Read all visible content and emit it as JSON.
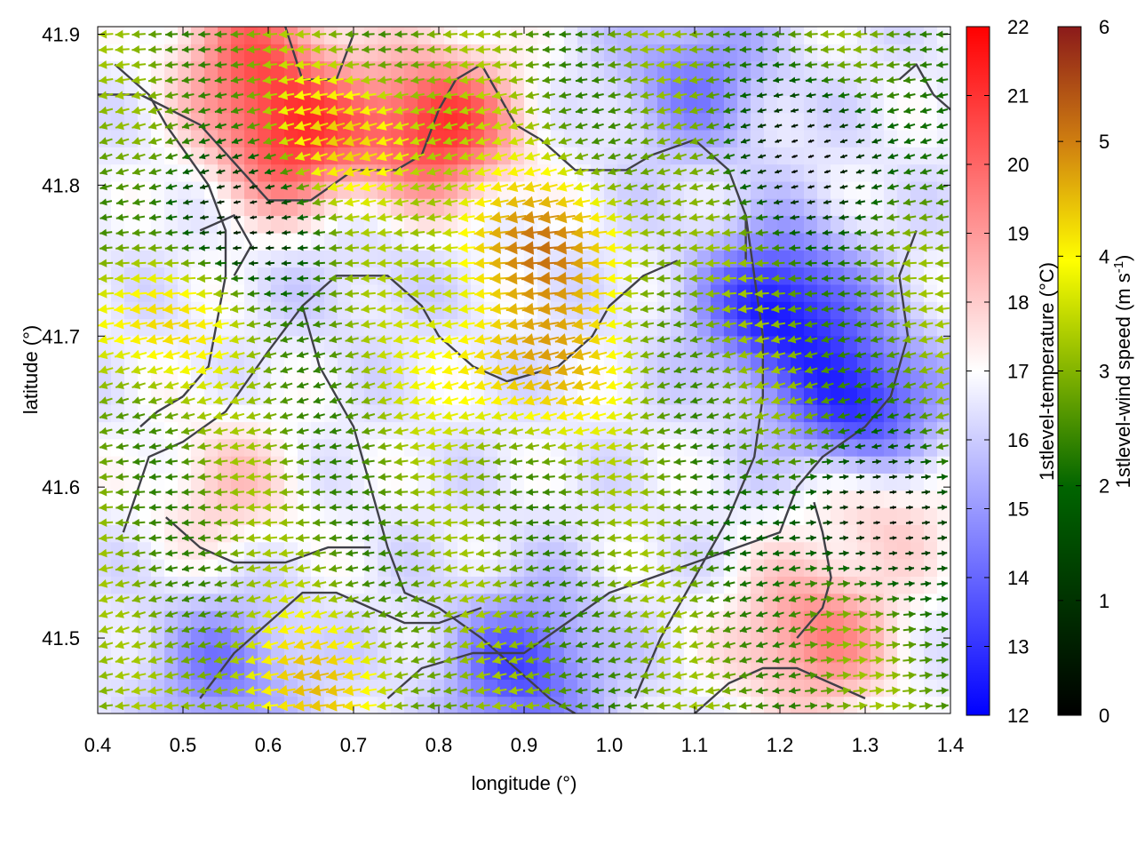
{
  "chart_data": {
    "type": "heatmap",
    "title": "",
    "xlabel": "longitude (°)",
    "ylabel": "latitude (°)",
    "xlim": [
      0.4,
      1.4
    ],
    "ylim": [
      41.45,
      41.905
    ],
    "xticks": [
      "0.4",
      "0.5",
      "0.6",
      "0.7",
      "0.8",
      "0.9",
      "1.0",
      "1.1",
      "1.2",
      "1.3",
      "1.4"
    ],
    "yticks": [
      "41.5",
      "41.6",
      "41.7",
      "41.8",
      "41.9"
    ],
    "xtick_values": [
      0.4,
      0.5,
      0.6,
      0.7,
      0.8,
      0.9,
      1.0,
      1.1,
      1.2,
      1.3,
      1.4
    ],
    "ytick_values": [
      41.5,
      41.6,
      41.7,
      41.8,
      41.9
    ],
    "grid": false,
    "temperature_colorbar": {
      "label": "1stlevel-temperature (°C)",
      "range": [
        12,
        22
      ],
      "ticks": [
        "12",
        "13",
        "14",
        "15",
        "16",
        "17",
        "18",
        "19",
        "20",
        "21",
        "22"
      ],
      "colors": [
        "#0000ff",
        "#ffffff",
        "#ff0000"
      ]
    },
    "wind_colorbar": {
      "label_main": "1stlevel-wind speed (m s",
      "label_sup": "-1",
      "label_end": ")",
      "range": [
        0,
        6
      ],
      "ticks": [
        "0",
        "1",
        "2",
        "3",
        "4",
        "5",
        "6"
      ],
      "colors": [
        "#000000",
        "#006400",
        "#ffff00",
        "#d08010",
        "#8b1a1a"
      ]
    },
    "temperature_features": [
      {
        "lon": 0.63,
        "lat": 41.83,
        "temp": 20.5
      },
      {
        "lon": 0.8,
        "lat": 41.84,
        "temp": 21.0
      },
      {
        "lon": 0.58,
        "lat": 41.89,
        "temp": 19.5
      },
      {
        "lon": 1.24,
        "lat": 41.5,
        "temp": 19.5
      },
      {
        "lon": 1.32,
        "lat": 41.6,
        "temp": 18.5
      },
      {
        "lon": 0.55,
        "lat": 41.6,
        "temp": 18.0
      },
      {
        "lon": 1.2,
        "lat": 41.72,
        "temp": 12.5
      },
      {
        "lon": 1.3,
        "lat": 41.65,
        "temp": 12.5
      },
      {
        "lon": 1.1,
        "lat": 41.87,
        "temp": 14.5
      },
      {
        "lon": 0.9,
        "lat": 41.48,
        "temp": 13.5
      },
      {
        "lon": 0.55,
        "lat": 41.48,
        "temp": 14.5
      },
      {
        "lon": 0.7,
        "lat": 41.75,
        "temp": 16.0
      }
    ],
    "wind_features": [
      {
        "lon": 0.92,
        "lat": 41.76,
        "speed": 4.3
      },
      {
        "lon": 0.9,
        "lat": 41.68,
        "speed": 4.0
      },
      {
        "lon": 0.45,
        "lat": 41.71,
        "speed": 3.5
      },
      {
        "lon": 0.65,
        "lat": 41.47,
        "speed": 3.5
      },
      {
        "lon": 0.7,
        "lat": 41.83,
        "speed": 3.5
      },
      {
        "lon": 1.25,
        "lat": 41.82,
        "speed": 0.3
      },
      {
        "lon": 1.3,
        "lat": 41.58,
        "speed": 0.4
      },
      {
        "lon": 0.56,
        "lat": 41.78,
        "speed": 0.5
      }
    ],
    "boundaries": [
      [
        [
          0.62,
          41.905
        ],
        [
          0.64,
          41.87
        ],
        [
          0.68,
          41.87
        ],
        [
          0.7,
          41.9
        ]
      ],
      [
        [
          0.4,
          41.86
        ],
        [
          0.45,
          41.86
        ],
        [
          0.52,
          41.84
        ],
        [
          0.6,
          41.79
        ],
        [
          0.65,
          41.79
        ],
        [
          0.7,
          41.81
        ],
        [
          0.75,
          41.81
        ],
        [
          0.78,
          41.82
        ],
        [
          0.8,
          41.85
        ],
        [
          0.82,
          41.87
        ],
        [
          0.85,
          41.88
        ],
        [
          0.87,
          41.86
        ],
        [
          0.89,
          41.84
        ],
        [
          0.92,
          41.83
        ],
        [
          0.96,
          41.81
        ],
        [
          1.02,
          41.81
        ],
        [
          1.05,
          41.82
        ],
        [
          1.1,
          41.83
        ],
        [
          1.14,
          41.81
        ],
        [
          1.16,
          41.78
        ],
        [
          1.16,
          41.75
        ]
      ],
      [
        [
          0.42,
          41.88
        ],
        [
          0.46,
          41.86
        ],
        [
          0.48,
          41.84
        ],
        [
          0.53,
          41.8
        ],
        [
          0.55,
          41.77
        ],
        [
          0.55,
          41.74
        ],
        [
          0.54,
          41.71
        ],
        [
          0.53,
          41.68
        ],
        [
          0.5,
          41.66
        ]
      ],
      [
        [
          0.5,
          41.66
        ],
        [
          0.47,
          41.65
        ],
        [
          0.45,
          41.64
        ]
      ],
      [
        [
          0.43,
          41.57
        ],
        [
          0.46,
          41.62
        ],
        [
          0.5,
          41.63
        ],
        [
          0.55,
          41.65
        ],
        [
          0.6,
          41.69
        ],
        [
          0.64,
          41.72
        ],
        [
          0.68,
          41.74
        ],
        [
          0.74,
          41.74
        ],
        [
          0.78,
          41.72
        ],
        [
          0.8,
          41.7
        ],
        [
          0.84,
          41.68
        ],
        [
          0.88,
          41.67
        ],
        [
          0.94,
          41.68
        ],
        [
          0.98,
          41.7
        ],
        [
          1.0,
          41.72
        ],
        [
          1.04,
          41.74
        ],
        [
          1.08,
          41.75
        ]
      ],
      [
        [
          0.64,
          41.72
        ],
        [
          0.66,
          41.68
        ],
        [
          0.7,
          41.64
        ],
        [
          0.72,
          41.6
        ],
        [
          0.74,
          41.56
        ],
        [
          0.76,
          41.53
        ],
        [
          0.8,
          41.52
        ],
        [
          0.85,
          41.5
        ],
        [
          0.89,
          41.48
        ],
        [
          0.93,
          41.46
        ],
        [
          0.96,
          41.45
        ]
      ],
      [
        [
          0.48,
          41.58
        ],
        [
          0.52,
          41.56
        ],
        [
          0.56,
          41.55
        ],
        [
          0.62,
          41.55
        ],
        [
          0.67,
          41.56
        ],
        [
          0.72,
          41.56
        ]
      ],
      [
        [
          0.52,
          41.46
        ],
        [
          0.56,
          41.49
        ],
        [
          0.6,
          41.51
        ],
        [
          0.64,
          41.53
        ],
        [
          0.68,
          41.53
        ],
        [
          0.72,
          41.52
        ],
        [
          0.76,
          41.51
        ],
        [
          0.8,
          41.51
        ],
        [
          0.85,
          41.52
        ]
      ],
      [
        [
          0.74,
          41.46
        ],
        [
          0.78,
          41.48
        ],
        [
          0.84,
          41.49
        ],
        [
          0.9,
          41.49
        ],
        [
          0.95,
          41.51
        ],
        [
          1.0,
          41.53
        ],
        [
          1.05,
          41.54
        ],
        [
          1.1,
          41.55
        ],
        [
          1.15,
          41.56
        ],
        [
          1.2,
          41.57
        ],
        [
          1.22,
          41.6
        ],
        [
          1.25,
          41.62
        ],
        [
          1.3,
          41.64
        ],
        [
          1.33,
          41.66
        ],
        [
          1.35,
          41.7
        ],
        [
          1.34,
          41.74
        ],
        [
          1.36,
          41.77
        ]
      ],
      [
        [
          1.03,
          41.46
        ],
        [
          1.06,
          41.5
        ],
        [
          1.1,
          41.54
        ],
        [
          1.14,
          41.58
        ],
        [
          1.17,
          41.62
        ],
        [
          1.18,
          41.66
        ],
        [
          1.18,
          41.7
        ],
        [
          1.17,
          41.74
        ],
        [
          1.16,
          41.78
        ]
      ],
      [
        [
          1.1,
          41.45
        ],
        [
          1.14,
          41.47
        ],
        [
          1.18,
          41.48
        ],
        [
          1.22,
          41.48
        ],
        [
          1.26,
          41.47
        ],
        [
          1.3,
          41.46
        ]
      ],
      [
        [
          1.22,
          41.5
        ],
        [
          1.25,
          41.52
        ],
        [
          1.26,
          41.54
        ],
        [
          1.25,
          41.57
        ],
        [
          1.24,
          41.59
        ]
      ],
      [
        [
          1.34,
          41.87
        ],
        [
          1.36,
          41.88
        ],
        [
          1.38,
          41.86
        ],
        [
          1.4,
          41.85
        ]
      ],
      [
        [
          0.52,
          41.77
        ],
        [
          0.56,
          41.78
        ],
        [
          0.58,
          41.76
        ],
        [
          0.56,
          41.74
        ]
      ]
    ]
  }
}
